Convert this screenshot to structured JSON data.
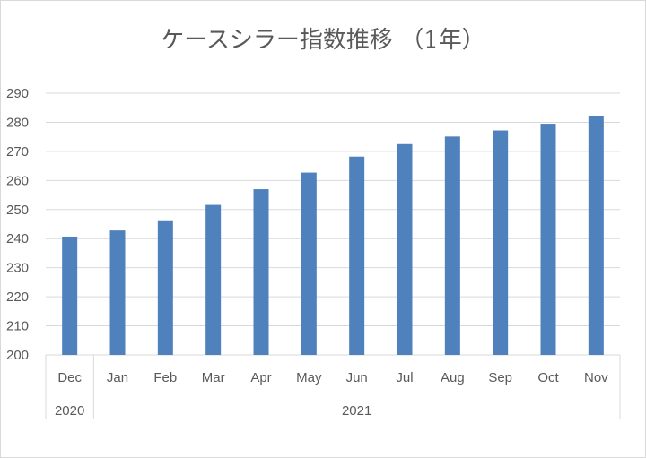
{
  "chart_data": {
    "type": "bar",
    "title": "ケースシラー指数推移 （1年）",
    "categories": [
      "Dec",
      "Jan",
      "Feb",
      "Mar",
      "Apr",
      "May",
      "Jun",
      "Jul",
      "Aug",
      "Sep",
      "Oct",
      "Nov"
    ],
    "year_groups": [
      {
        "label": "2020",
        "count": 1
      },
      {
        "label": "2021",
        "count": 11
      }
    ],
    "values": [
      240.7,
      242.8,
      246.0,
      251.6,
      257.0,
      262.7,
      268.2,
      272.5,
      275.1,
      277.2,
      279.5,
      282.3
    ],
    "ylim": [
      200,
      290
    ],
    "yticks": [
      200,
      210,
      220,
      230,
      240,
      250,
      260,
      270,
      280,
      290
    ],
    "grid": true,
    "legend": "none",
    "bar_color": "#4f81bd"
  }
}
